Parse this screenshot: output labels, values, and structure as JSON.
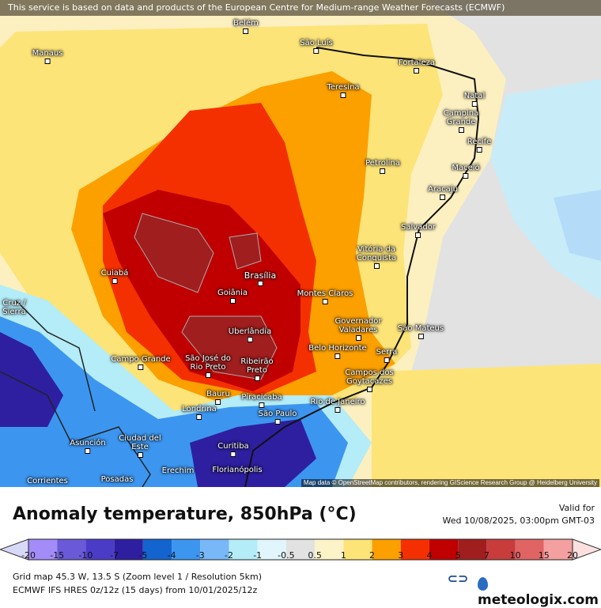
{
  "banner": "This service is based on data and products of the European Centre for Medium-range Weather Forecasts (ECMWF)",
  "attribution": "Map data © OpenStreetMap contributors, rendering GIScience Research Group @ Heidelberg University",
  "cities": [
    "Manaus",
    "Belém",
    "São Luís",
    "Fortaleza",
    "Teresina",
    "Natal",
    "Campina Grande",
    "Recife",
    "Petrolina",
    "Maceió",
    "Aracaju",
    "Salvador",
    "Vitória da Conquista",
    "Cuiabá",
    "Brasília",
    "Goiânia",
    "Montes Claros",
    "Governador Valadares",
    "São Mateus",
    "Uberlândia",
    "Belo Horizonte",
    "Serra",
    "Campo Grande",
    "São José do Rio Preto",
    "Ribeirão Preto",
    "Campos dos Goytacazes",
    "Bauru",
    "Piracicaba",
    "Rio de Janeiro",
    "Londrina",
    "São Paulo",
    "Asunción",
    "Ciudad del Este",
    "Curitiba",
    "Corrientes",
    "Posadas",
    "Erechim",
    "Florianópolis",
    "Cruz / Sierra"
  ],
  "title": "Anomaly temperature, 850hPa (°C)",
  "valid_label": "Valid for",
  "valid_time": "Wed 10/08/2025, 03:00pm GMT-03",
  "legend": {
    "ticks": [
      "-20",
      "-15",
      "-10",
      "-7",
      "-5",
      "-4",
      "-3",
      "-2",
      "-1",
      "-0.5",
      "0.5",
      "1",
      "2",
      "3",
      "4",
      "5",
      "7",
      "10",
      "15",
      "20"
    ],
    "colors": [
      "#a48cf8",
      "#6a5ad8",
      "#4b3cc8",
      "#2e1fa0",
      "#1464d0",
      "#3c96f0",
      "#78b8f8",
      "#b4ecf8",
      "#e0f6fc",
      "#e2e2e2",
      "#fcf4c8",
      "#fce478",
      "#fca000",
      "#f43000",
      "#c00000",
      "#a01e1e",
      "#c83c3c",
      "#e06464",
      "#f4a0a0"
    ],
    "low_color": "#d8d8f8",
    "high_color": "#fce0e0"
  },
  "footer": {
    "grid": "Grid map 45.3 W, 13.5 S (Zoom level 1 / Resolution 5km)",
    "model": "ECMWF IFS HRES 0z/12z (15 days) from  10/01/2025/12z"
  },
  "logos": {
    "ecmwf": "ECMWF",
    "meteologix": "meteologix.com"
  }
}
